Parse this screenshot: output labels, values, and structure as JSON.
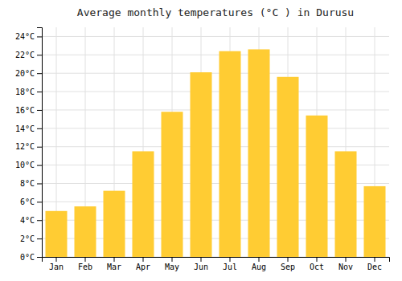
{
  "chart_data": {
    "type": "bar",
    "title": "Average monthly temperatures (°C ) in Durusu",
    "categories": [
      "Jan",
      "Feb",
      "Mar",
      "Apr",
      "May",
      "Jun",
      "Jul",
      "Aug",
      "Sep",
      "Oct",
      "Nov",
      "Dec"
    ],
    "values": [
      5.0,
      5.5,
      7.2,
      11.5,
      15.8,
      20.1,
      22.4,
      22.6,
      19.6,
      15.4,
      11.5,
      7.7
    ],
    "color": "#FFCC33",
    "ylim": [
      0,
      25
    ],
    "yticks": [
      {
        "value": 0,
        "label": "0°C"
      },
      {
        "value": 2,
        "label": "2°C"
      },
      {
        "value": 4,
        "label": "4°C"
      },
      {
        "value": 6,
        "label": "6°C"
      },
      {
        "value": 8,
        "label": "8°C"
      },
      {
        "value": 10,
        "label": "10°C"
      },
      {
        "value": 12,
        "label": "12°C"
      },
      {
        "value": 14,
        "label": "14°C"
      },
      {
        "value": 16,
        "label": "16°C"
      },
      {
        "value": 18,
        "label": "18°C"
      },
      {
        "value": 20,
        "label": "20°C"
      },
      {
        "value": 22,
        "label": "22°C"
      },
      {
        "value": 24,
        "label": "24°C"
      }
    ],
    "grid": true
  }
}
